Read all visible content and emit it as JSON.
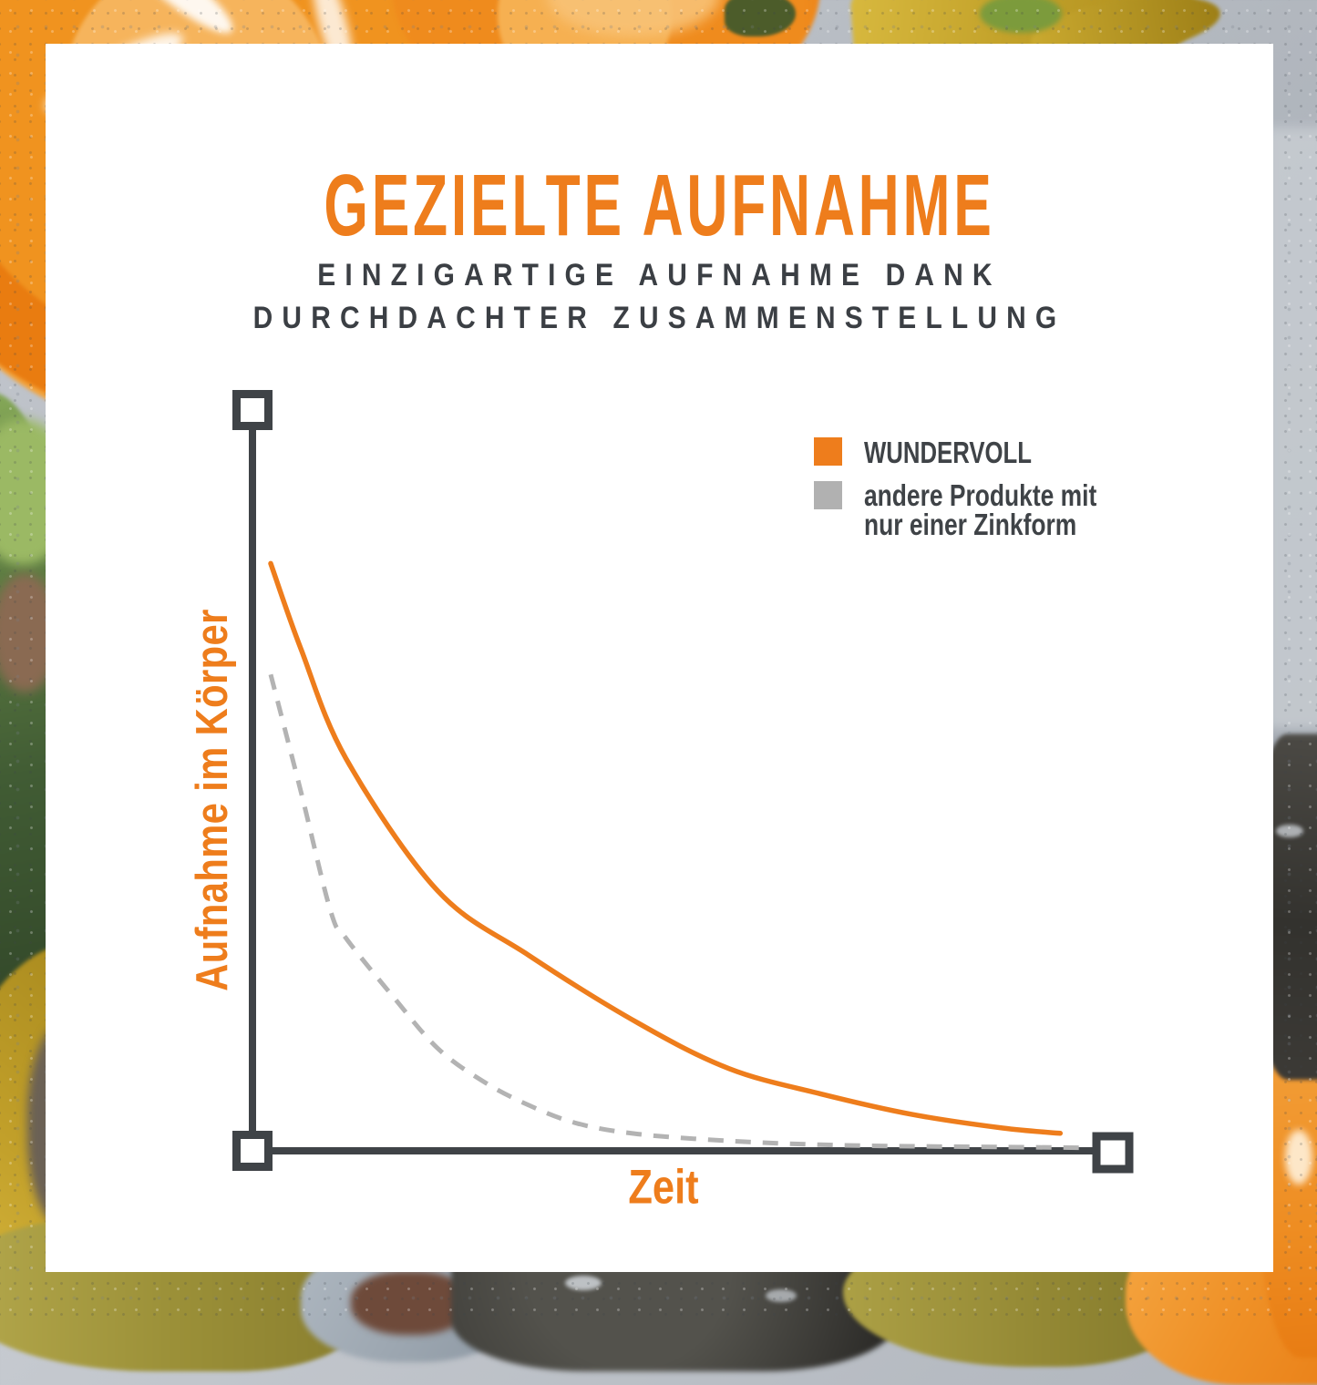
{
  "header": {
    "title": "GEZIELTE AUFNAHME",
    "subtitle_line1": "EINZIGARTIGE AUFNAHME DANK",
    "subtitle_line2": "DURCHDACHTER ZUSAMMENSTELLUNG"
  },
  "legend": {
    "items": [
      {
        "label": "WUNDERVOLL",
        "color": "#ee7d1c"
      },
      {
        "label": "andere Produkte mit nur einer Zinkform",
        "lines": [
          "andere Produkte mit",
          "nur einer Zinkform"
        ],
        "color": "#b1b1b1"
      }
    ]
  },
  "colors": {
    "accent_orange": "#ee7d1c",
    "muted_gray": "#b3b3b3",
    "axis_dark": "#3f4347",
    "text_dark": "#3b3f44",
    "card_background": "#ffffff"
  },
  "chart_data": {
    "type": "line",
    "title": "",
    "xlabel": "Zeit",
    "ylabel": "Aufnahme im Körper",
    "x_range": [
      0,
      100
    ],
    "y_range": [
      0,
      100
    ],
    "grid": false,
    "axis_tick_labels": "none (qualitative sketch)",
    "legend_position": "top-right",
    "series": [
      {
        "name": "WUNDERVOLL",
        "color": "#ee7d1c",
        "style": "solid",
        "points": [
          [
            0,
            77.2
          ],
          [
            3.7,
            65.9
          ],
          [
            9.2,
            51.5
          ],
          [
            20.3,
            34.2
          ],
          [
            31.4,
            25.7
          ],
          [
            44.7,
            16.8
          ],
          [
            55.8,
            10.8
          ],
          [
            66.9,
            7.5
          ],
          [
            78,
            4.8
          ],
          [
            89.1,
            3.0
          ],
          [
            96.1,
            2.3
          ]
        ]
      },
      {
        "name": "andere Produkte mit nur einer Zinkform",
        "color": "#b3b3b3",
        "style": "dashed",
        "points": [
          [
            0,
            62.6
          ],
          [
            3.7,
            47.1
          ],
          [
            7.3,
            31.5
          ],
          [
            9.2,
            27.9
          ],
          [
            14.8,
            20.4
          ],
          [
            20.3,
            13.5
          ],
          [
            25.9,
            9.1
          ],
          [
            31.4,
            6.0
          ],
          [
            37.3,
            3.6
          ],
          [
            44.7,
            2.2
          ],
          [
            55.8,
            1.3
          ],
          [
            66.9,
            0.8
          ],
          [
            78,
            0.6
          ],
          [
            89.1,
            0.5
          ],
          [
            99.7,
            0.4
          ]
        ]
      }
    ]
  }
}
